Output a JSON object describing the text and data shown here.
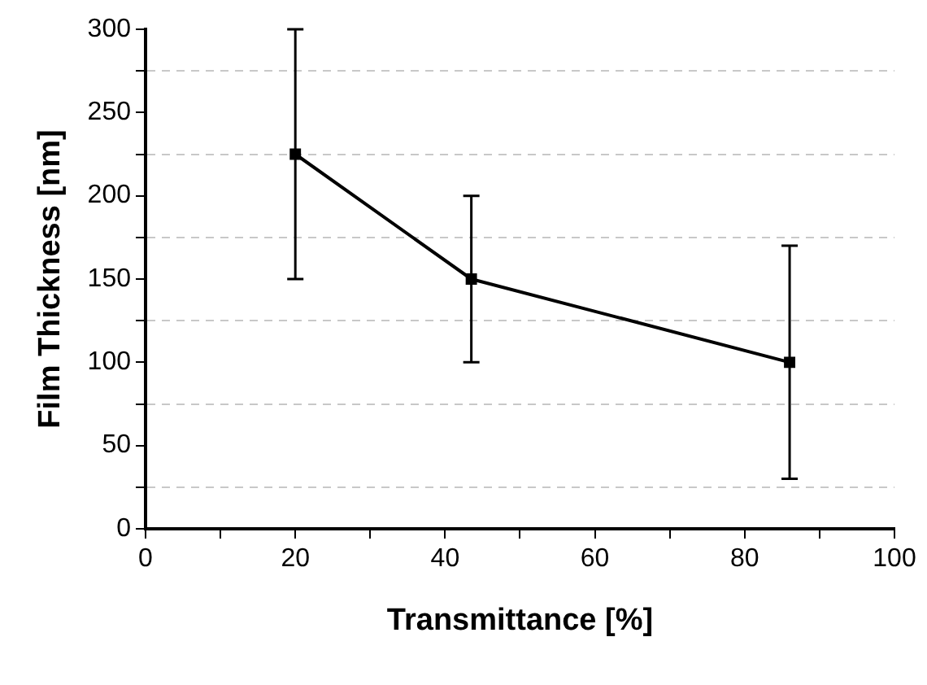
{
  "chart_data": {
    "type": "line",
    "xlabel": "Transmittance [%]",
    "ylabel": "Film Thickness [nm]",
    "x": [
      20,
      43.5,
      86
    ],
    "series": [
      {
        "color": "#000000",
        "values": [
          225,
          150,
          100
        ],
        "errors": [
          [
            150,
            300
          ],
          [
            100,
            200
          ],
          [
            30,
            170
          ]
        ]
      }
    ],
    "xlim": [
      0,
      100
    ],
    "ylim": [
      0,
      300
    ],
    "xticks": [
      0,
      {
        "value": 10,
        "label": null
      },
      20,
      {
        "value": 30,
        "label": null
      },
      40,
      {
        "value": 50,
        "label": null
      },
      60,
      {
        "value": 70,
        "label": null
      },
      80,
      {
        "value": 90,
        "label": null
      },
      100
    ],
    "yticks": [
      0,
      {
        "value": 25,
        "label": null
      },
      50,
      {
        "value": 75,
        "label": null
      },
      100,
      {
        "value": 125,
        "label": null
      },
      150,
      {
        "value": 175,
        "label": null
      },
      200,
      {
        "value": 225,
        "label": null
      },
      250,
      {
        "value": 275,
        "label": null
      },
      300
    ],
    "grid": "y",
    "marker": "square",
    "line_style": "solid",
    "legend": false
  }
}
